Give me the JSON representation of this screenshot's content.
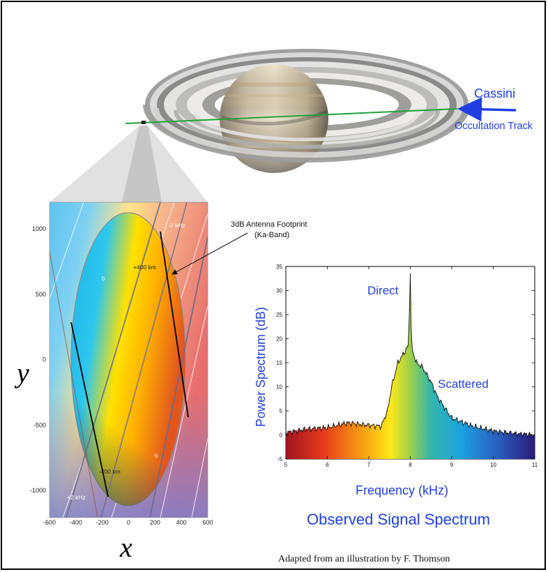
{
  "top": {
    "cassini_label": "Cassini",
    "track_label": "Occultation Track",
    "colors": {
      "track": "#1fa23a",
      "arrow": "#1f3fe0"
    }
  },
  "footprint": {
    "annotation_line1": "3dB Antenna Footprint",
    "annotation_line2": "(Ka-Band)",
    "label_plus400": "+400 km",
    "label_minus400": "-400 km",
    "label_minus2khz": "-2 kHz",
    "label_plus2khz": "+2 kHz",
    "contour_zero_a": "0",
    "contour_zero_b": "0",
    "x_axis_label": "x",
    "y_axis_label": "y",
    "x_ticks": [
      "-600",
      "-400",
      "-200",
      "0",
      "200",
      "400",
      "600"
    ],
    "y_ticks": [
      "1000",
      "500",
      "0",
      "-500",
      "-1000"
    ]
  },
  "spectrum": {
    "peak_label": "Direct",
    "scatter_label": "Scattered",
    "x_label": "Frequency (kHz)",
    "y_label": "Power Spectrum (dB)",
    "title": "Observed Signal Spectrum",
    "x_ticks": [
      "5",
      "6",
      "7",
      "8",
      "9",
      "10",
      "11"
    ],
    "y_ticks": [
      "35",
      "30",
      "25",
      "20",
      "15",
      "10",
      "5",
      "0",
      "-5"
    ]
  },
  "chart_data": {
    "type": "area",
    "title": "Observed Signal Spectrum",
    "xlabel": "Frequency (kHz)",
    "ylabel": "Power Spectrum (dB)",
    "xlim": [
      5,
      11
    ],
    "ylim": [
      -5,
      35
    ],
    "x": [
      5.0,
      5.5,
      6.0,
      6.5,
      7.0,
      7.3,
      7.45,
      7.55,
      7.7,
      7.85,
      7.95,
      7.98,
      8.0,
      8.02,
      8.05,
      8.15,
      8.3,
      8.5,
      8.65,
      8.8,
      9.0,
      9.5,
      10.0,
      10.5,
      11.0
    ],
    "series": [
      {
        "values": [
          0.5,
          1.2,
          1.5,
          2.5,
          2.0,
          1.8,
          5.0,
          10.0,
          15.0,
          17.0,
          18.5,
          26.0,
          33.5,
          22.0,
          17.5,
          15.0,
          14.0,
          11.0,
          8.0,
          6.0,
          3.5,
          1.8,
          0.8,
          0.3,
          0.0
        ]
      }
    ]
  },
  "credit": "Adapted from an illustration by F. Thomson"
}
